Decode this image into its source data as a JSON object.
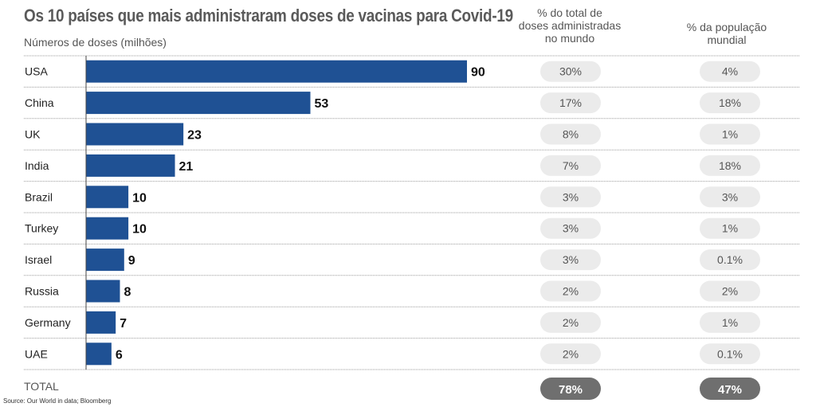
{
  "title": "Os 10 países que mais administraram doses de vacinas para Covid-19",
  "subtitle": "Números de doses (milhões)",
  "col_share_doses_header": [
    "% do total de",
    "doses administradas",
    "no mundo"
  ],
  "col_share_pop_header": [
    "% da população",
    "mundial"
  ],
  "total_label": "TOTAL",
  "total_share_doses": "78%",
  "total_share_pop": "47%",
  "source": "Source: Our World in data; Bloomberg",
  "colors": {
    "bar": "#1f5194",
    "pill": "#ebebeb",
    "pill_total": "#6f6f6f",
    "text": "#555555"
  },
  "chart_data": {
    "type": "bar",
    "orientation": "horizontal",
    "categories": [
      "USA",
      "China",
      "UK",
      "India",
      "Brazil",
      "Turkey",
      "Israel",
      "Russia",
      "Germany",
      "UAE"
    ],
    "values": [
      90,
      53,
      23,
      21,
      10,
      10,
      9,
      8,
      7,
      6
    ],
    "share_of_world_doses": [
      "30%",
      "17%",
      "8%",
      "7%",
      "3%",
      "3%",
      "3%",
      "2%",
      "2%",
      "2%"
    ],
    "share_of_world_population": [
      "4%",
      "18%",
      "1%",
      "18%",
      "3%",
      "1%",
      "0.1%",
      "2%",
      "1%",
      "0.1%"
    ],
    "title": "Os 10 países que mais administraram doses de vacinas para Covid-19",
    "xlabel": "Números de doses (milhões)",
    "ylabel": "",
    "xlim": [
      0,
      90
    ],
    "grid": false,
    "legend": "none"
  }
}
